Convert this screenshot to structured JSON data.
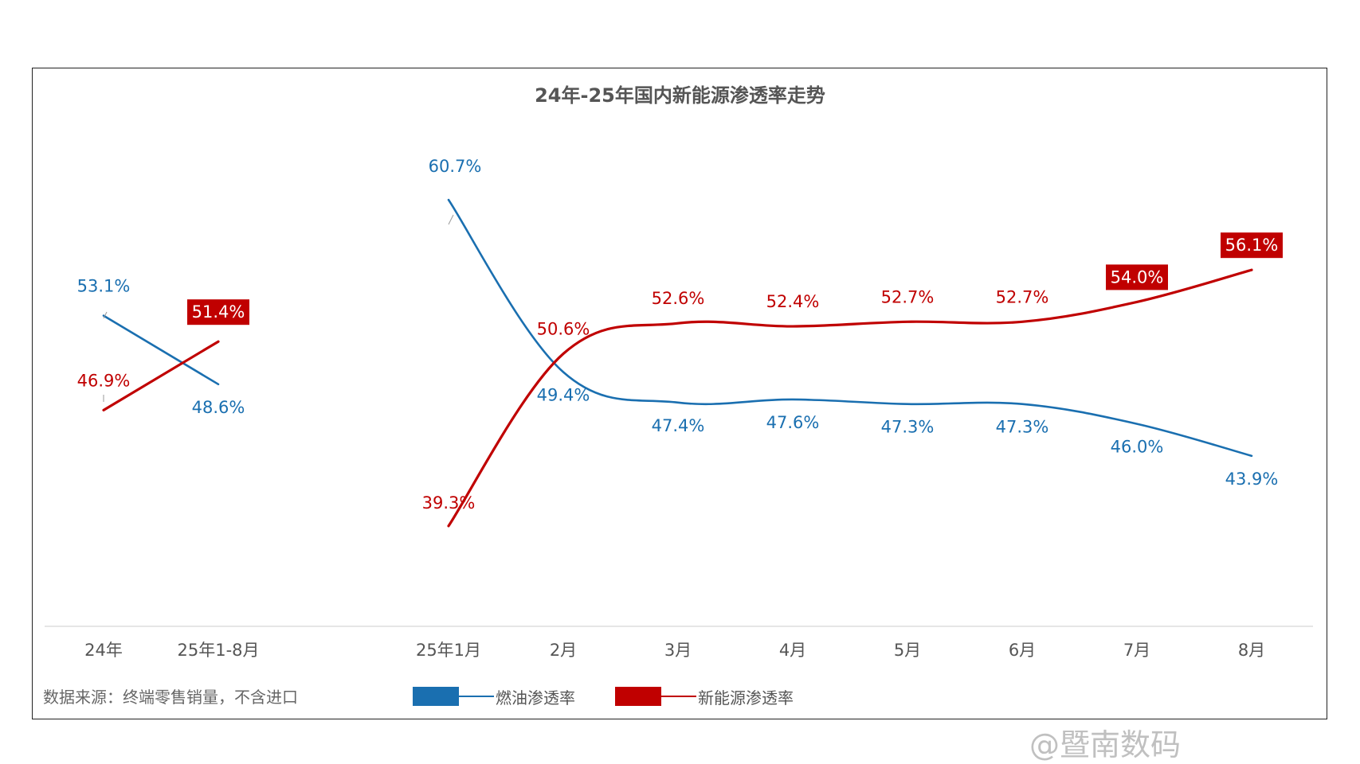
{
  "chart_data": {
    "type": "line",
    "title": "24年-25年国内新能源渗透率走势",
    "source": "数据来源：终端零售销量，不含进口",
    "colors": {
      "fuel": "#1a6fb0",
      "nev": "#c00000"
    },
    "groups": [
      {
        "categories": [
          "24年",
          "25年1-8月"
        ],
        "series": [
          {
            "name": "燃油渗透率",
            "values": [
              53.1,
              48.6
            ],
            "labels": [
              "53.1%",
              "48.6%"
            ]
          },
          {
            "name": "新能源渗透率",
            "values": [
              46.9,
              51.4
            ],
            "labels": [
              "46.9%",
              "51.4%"
            ]
          }
        ]
      },
      {
        "categories": [
          "25年1月",
          "2月",
          "3月",
          "4月",
          "5月",
          "6月",
          "7月",
          "8月"
        ],
        "series": [
          {
            "name": "燃油渗透率",
            "values": [
              60.7,
              49.4,
              47.4,
              47.6,
              47.3,
              47.3,
              46.0,
              43.9
            ],
            "labels": [
              "60.7%",
              "49.4%",
              "47.4%",
              "47.6%",
              "47.3%",
              "47.3%",
              "46.0%",
              "43.9%"
            ]
          },
          {
            "name": "新能源渗透率",
            "values": [
              39.3,
              50.6,
              52.6,
              52.4,
              52.7,
              52.7,
              54.0,
              56.1
            ],
            "labels": [
              "39.3%",
              "50.6%",
              "52.6%",
              "52.4%",
              "52.7%",
              "52.7%",
              "54.0%",
              "56.1%"
            ]
          }
        ]
      }
    ],
    "highlighted_labels": [
      "51.4%",
      "54.0%",
      "56.1%"
    ],
    "legend": [
      "燃油渗透率",
      "新能源渗透率"
    ],
    "legend_position": "bottom",
    "grid": false
  },
  "watermark": "@暨南数码"
}
